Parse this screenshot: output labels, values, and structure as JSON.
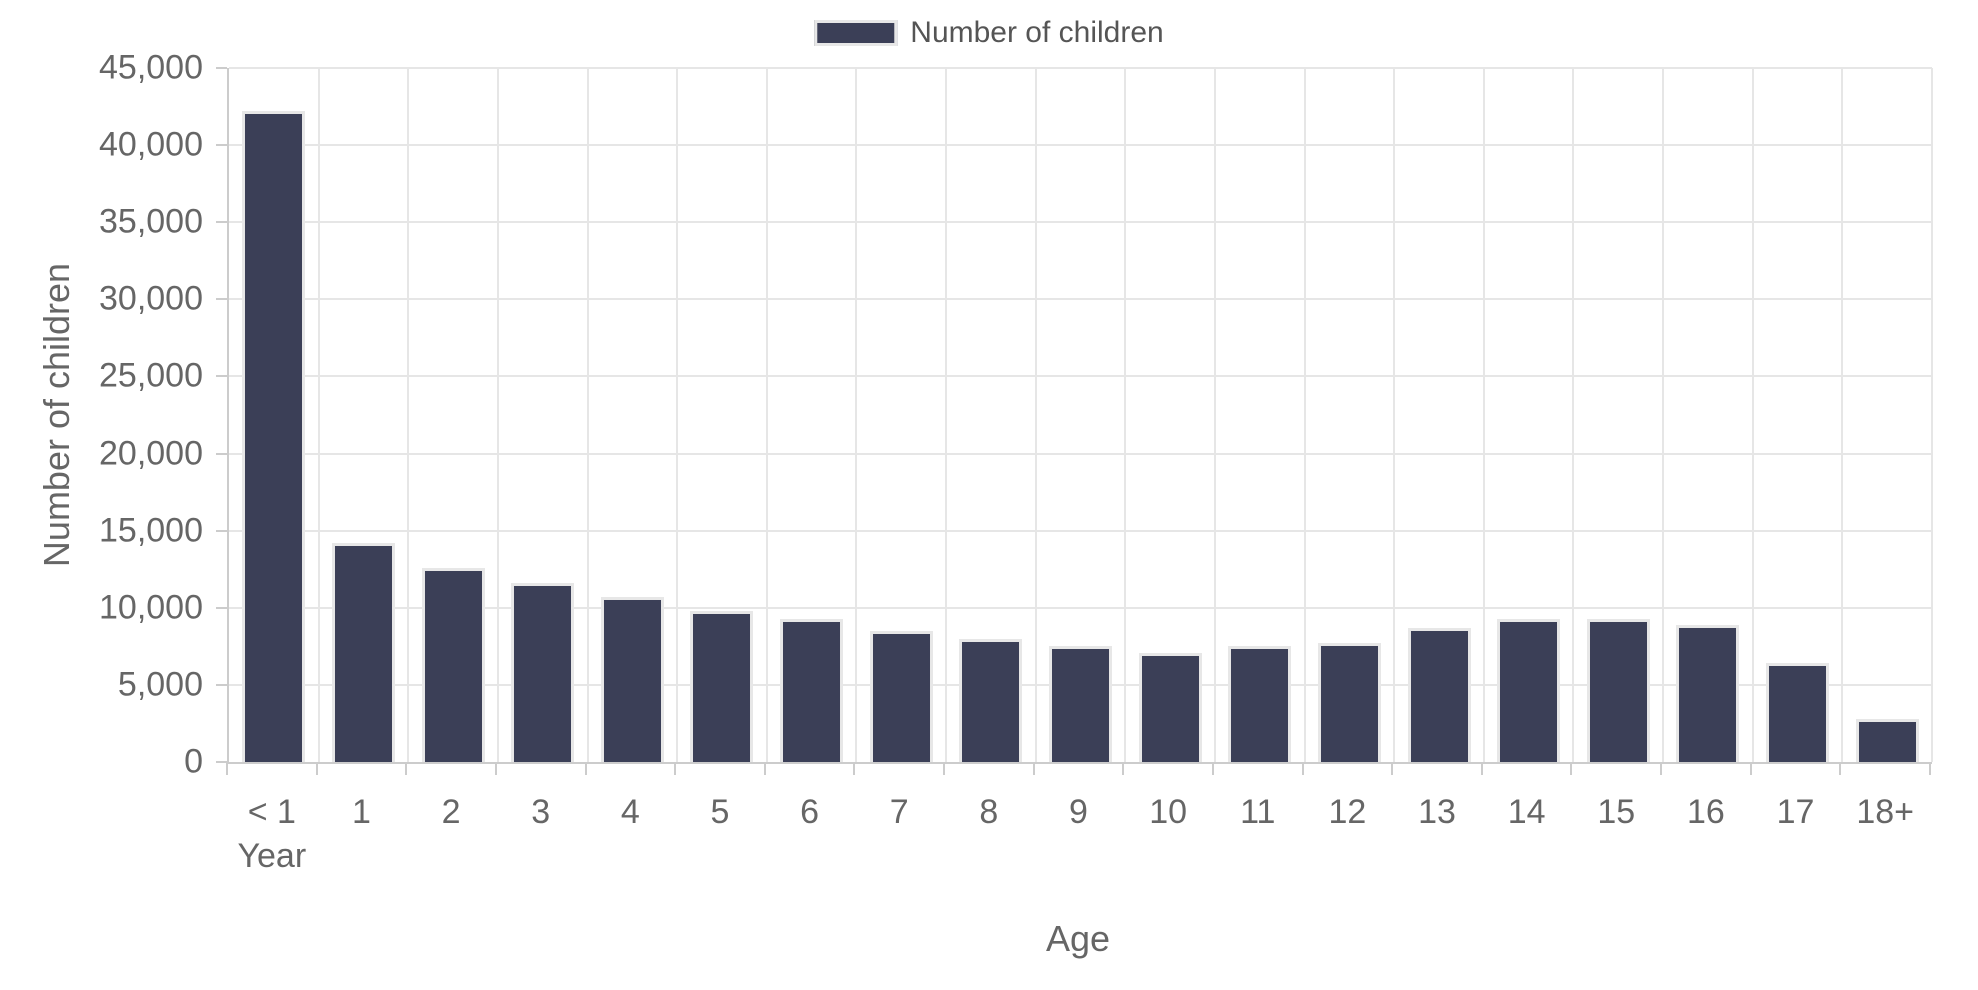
{
  "colors": {
    "bar_fill": "#3B3F57",
    "bar_outline": "#E7E7E7",
    "gridline": "#E6E6E6",
    "axis_line": "#CCCCCC",
    "tick_label": "#666666",
    "legend_text": "#555555",
    "background": "#FFFFFF"
  },
  "legend": {
    "label": "Number of children",
    "swatch": "bar-color-swatch"
  },
  "chart_data": {
    "type": "bar",
    "title": "",
    "xlabel": "Age",
    "ylabel": "Number of children",
    "legend_position": "top",
    "grid": true,
    "ylim": [
      0,
      45000
    ],
    "ytick_step": 5000,
    "ytick_labels": [
      "0",
      "5,000",
      "10,000",
      "15,000",
      "20,000",
      "25,000",
      "30,000",
      "35,000",
      "40,000",
      "45,000"
    ],
    "categories": [
      "< 1\nYear",
      "1",
      "2",
      "3",
      "4",
      "5",
      "6",
      "7",
      "8",
      "9",
      "10",
      "11",
      "12",
      "13",
      "14",
      "15",
      "16",
      "17",
      "18+"
    ],
    "series": [
      {
        "name": "Number of children",
        "values": [
          42200,
          14200,
          12600,
          11600,
          10700,
          9800,
          9300,
          8500,
          8000,
          7500,
          7100,
          7500,
          7700,
          8700,
          9300,
          9300,
          8900,
          6400,
          2800
        ]
      }
    ]
  }
}
